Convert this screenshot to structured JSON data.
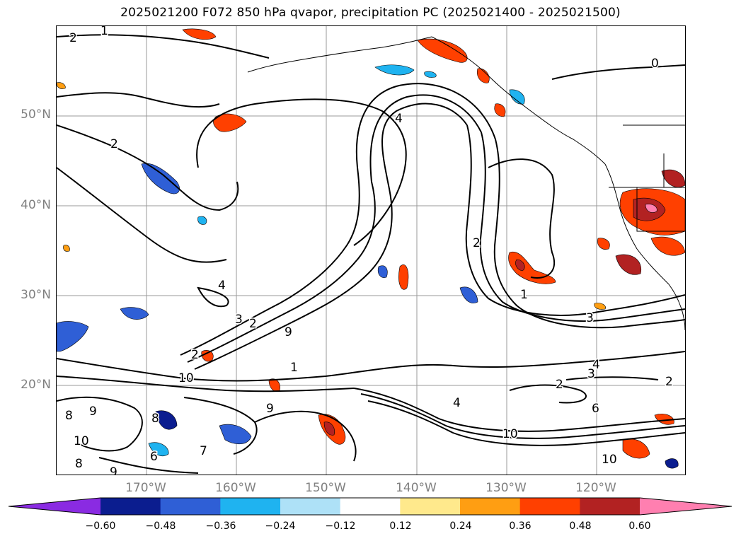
{
  "title": "2025021200 F072 850 hPa qvapor, precipitation PC (2025021400 - 2025021500)",
  "map": {
    "lat_labels": [
      {
        "text": "50°N",
        "lat": 50
      },
      {
        "text": "40°N",
        "lat": 40
      },
      {
        "text": "30°N",
        "lat": 30
      },
      {
        "text": "20°N",
        "lat": 20
      }
    ],
    "lon_labels": [
      {
        "text": "170°W",
        "lon": -170
      },
      {
        "text": "160°W",
        "lon": -160
      },
      {
        "text": "150°W",
        "lon": -150
      },
      {
        "text": "140°W",
        "lon": -140
      },
      {
        "text": "130°W",
        "lon": -130
      },
      {
        "text": "120°W",
        "lon": -120
      }
    ],
    "contour_labels": [
      "2",
      "1",
      "0",
      "2",
      "4",
      "2",
      "1",
      "3",
      "2",
      "9",
      "4",
      "10",
      "3",
      "2",
      "4",
      "3",
      "2",
      "6",
      "10",
      "4",
      "8",
      "9",
      "8",
      "9",
      "10",
      "8",
      "6",
      "7",
      "9",
      "10",
      "1",
      "2"
    ]
  },
  "colorbar": {
    "colors": [
      "#8a2be2",
      "#0b1d8f",
      "#2f5fd6",
      "#1fb3f0",
      "#aee1f7",
      "#ffffff",
      "#ffe98c",
      "#ff9e12",
      "#ff4000",
      "#b22222",
      "#ff7fb0"
    ],
    "ticks": [
      "−0.60",
      "−0.48",
      "−0.36",
      "−0.24",
      "−0.12",
      "0.12",
      "0.24",
      "0.36",
      "0.48",
      "0.60"
    ]
  }
}
